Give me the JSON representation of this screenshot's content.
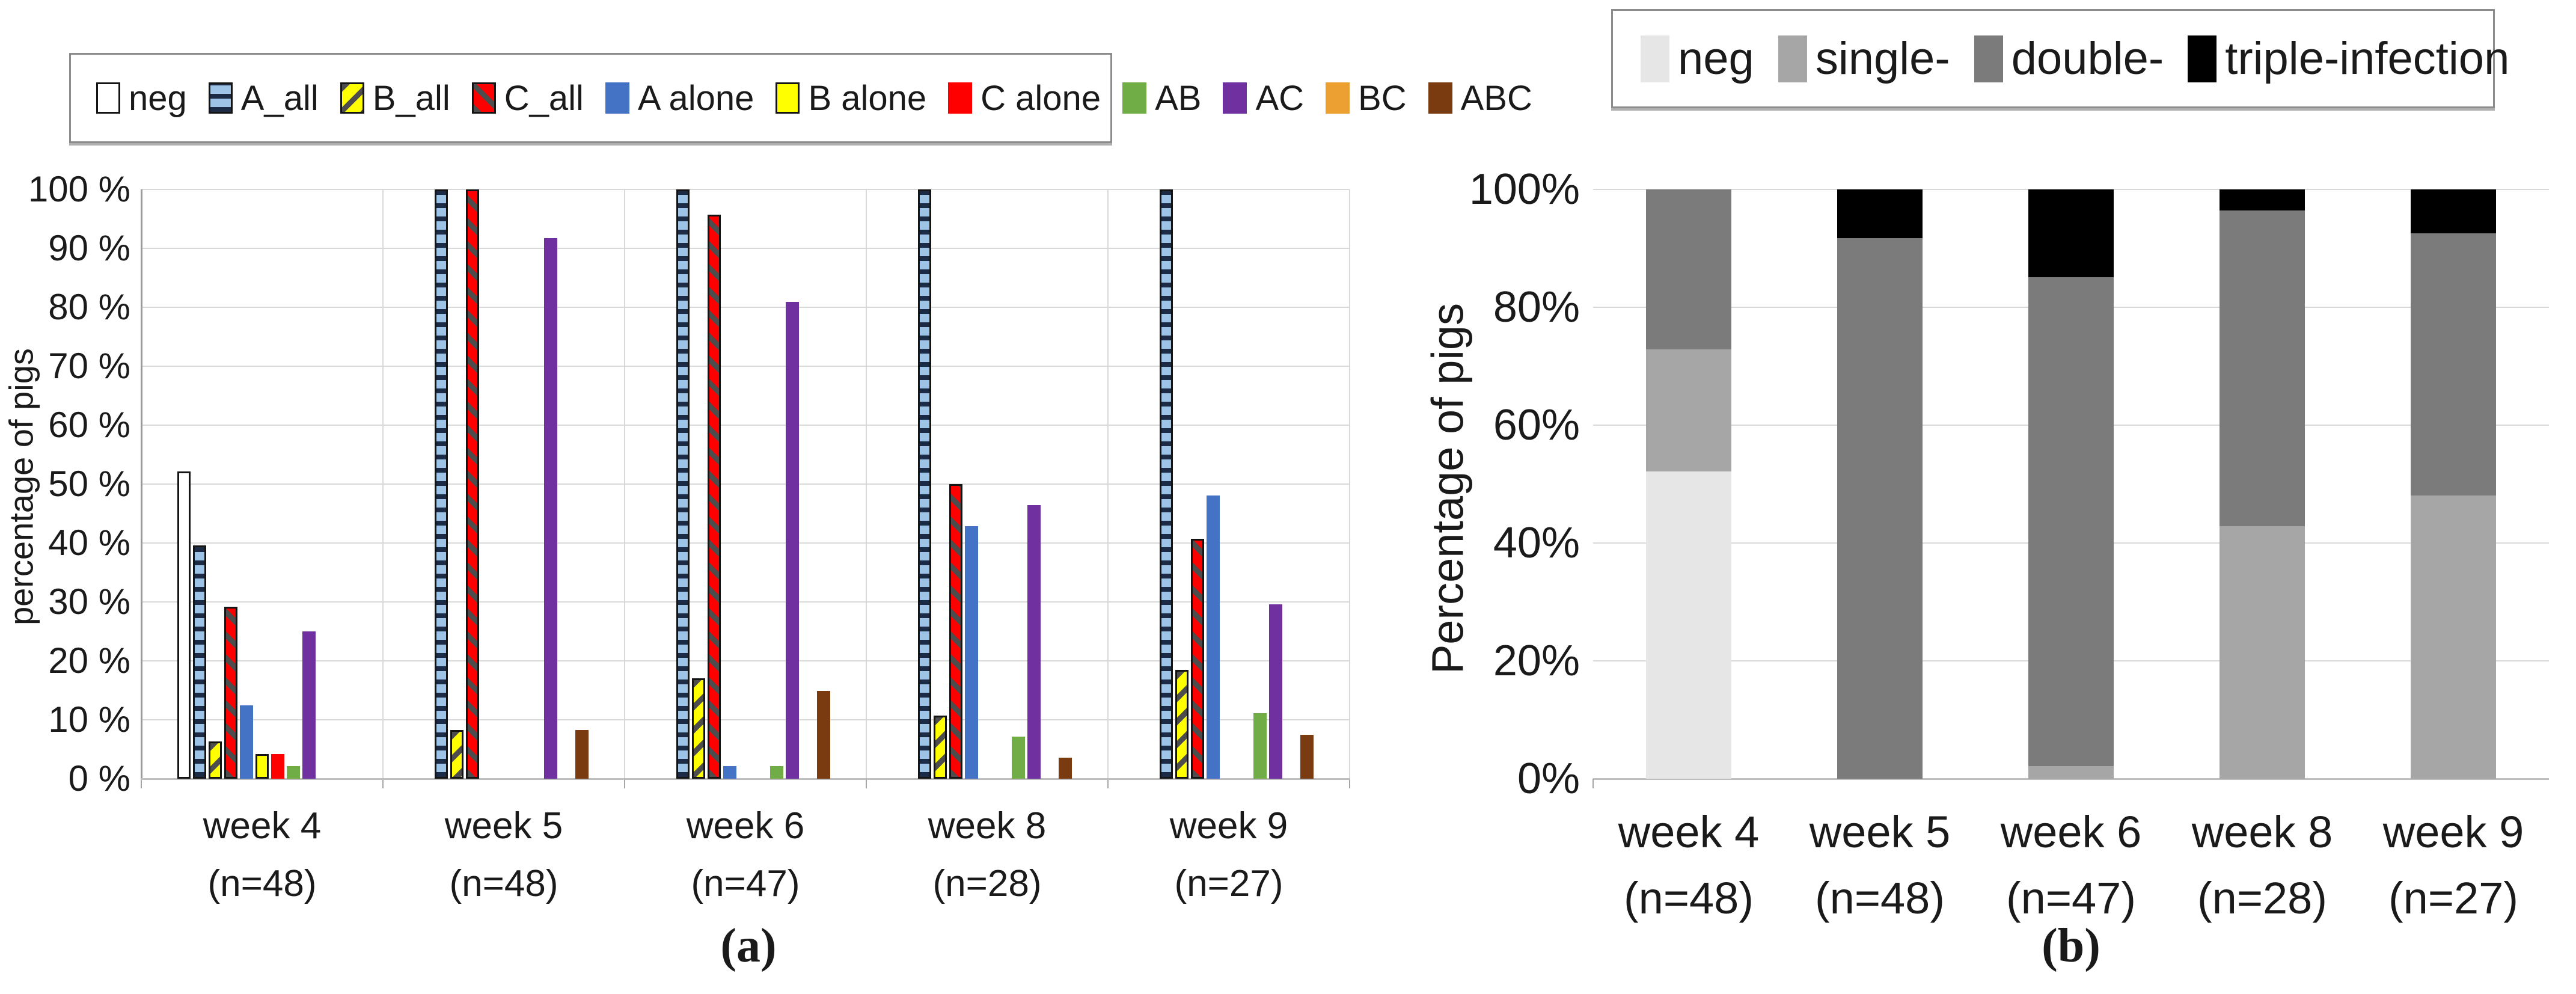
{
  "figure": {
    "caption_a": "(a)",
    "caption_b": "(b)"
  },
  "chart_data": [
    {
      "type": "bar",
      "panel": "a",
      "ylabel": "percentage of pigs",
      "ylim": [
        0,
        100
      ],
      "ytick_step": 10,
      "ytick_suffix": " %",
      "grid": true,
      "legend_position": "top",
      "categories": [
        "week 4",
        "week 5",
        "week 6",
        "week 8",
        "week 9"
      ],
      "category_sublabels": [
        "(n=48)",
        "(n=48)",
        "(n=47)",
        "(n=28)",
        "(n=27)"
      ],
      "series": [
        {
          "name": "neg",
          "color": "#ffffff",
          "pattern": null,
          "border": "#141414",
          "values": [
            52.1,
            0,
            0,
            0,
            0
          ]
        },
        {
          "name": "A_all",
          "color": "#9dc3e6",
          "pattern": "hstripe",
          "stripe": "#1c2b45",
          "border": "#141414",
          "values": [
            39.6,
            100,
            100,
            100,
            100
          ]
        },
        {
          "name": "B_all",
          "color": "#ffff00",
          "pattern": "diag-up",
          "stripe": "#4d4d4d",
          "border": "#141414",
          "values": [
            6.3,
            8.3,
            17.0,
            10.7,
            18.5
          ]
        },
        {
          "name": "C_all",
          "color": "#ff0000",
          "pattern": "diag-down",
          "stripe": "#4d4d4d",
          "border": "#141414",
          "values": [
            29.2,
            100,
            95.7,
            50.0,
            40.7
          ]
        },
        {
          "name": "A alone",
          "color": "#4472c4",
          "pattern": null,
          "border": null,
          "values": [
            12.5,
            0,
            2.1,
            42.9,
            48.1
          ]
        },
        {
          "name": "B alone",
          "color": "#ffff00",
          "pattern": null,
          "border": "#141414",
          "values": [
            4.2,
            0,
            0,
            0,
            0
          ]
        },
        {
          "name": "C alone",
          "color": "#ff0000",
          "pattern": null,
          "border": null,
          "values": [
            4.2,
            0,
            0,
            0,
            0
          ]
        },
        {
          "name": "AB",
          "color": "#70ad47",
          "pattern": null,
          "border": null,
          "values": [
            2.1,
            0,
            2.1,
            7.1,
            11.1
          ]
        },
        {
          "name": "AC",
          "color": "#7030a0",
          "pattern": null,
          "border": null,
          "values": [
            25.0,
            91.7,
            80.9,
            46.4,
            29.6
          ]
        },
        {
          "name": "BC",
          "color": "#eca032",
          "pattern": null,
          "border": null,
          "values": [
            0,
            0,
            0,
            0,
            0
          ]
        },
        {
          "name": "ABC",
          "color": "#7a3b10",
          "pattern": null,
          "border": null,
          "values": [
            0,
            8.3,
            14.9,
            3.6,
            7.4
          ]
        }
      ]
    },
    {
      "type": "stacked-bar",
      "panel": "b",
      "ylabel": "Percentage of pigs",
      "ylim": [
        0,
        100
      ],
      "ytick_step": 20,
      "ytick_suffix": "%",
      "grid": true,
      "legend_position": "top",
      "categories": [
        "week 4",
        "week 5",
        "week 6",
        "week 8",
        "week 9"
      ],
      "category_sublabels": [
        "(n=48)",
        "(n=48)",
        "(n=47)",
        "(n=28)",
        "(n=27)"
      ],
      "series": [
        {
          "name": "neg",
          "color": "#e7e6e6",
          "pattern": null,
          "border": null,
          "values": [
            52.1,
            0,
            0,
            0,
            0
          ]
        },
        {
          "name": "single-",
          "color": "#a6a6a6",
          "pattern": null,
          "border": null,
          "values": [
            20.8,
            0,
            2.1,
            42.9,
            48.1
          ]
        },
        {
          "name": "double-",
          "color": "#7b7b7b",
          "pattern": null,
          "border": null,
          "values": [
            27.1,
            91.7,
            83.0,
            53.5,
            44.5
          ]
        },
        {
          "name": "triple-infection",
          "color": "#000000",
          "pattern": null,
          "border": null,
          "values": [
            0,
            8.3,
            14.9,
            3.6,
            7.4
          ]
        }
      ]
    }
  ]
}
